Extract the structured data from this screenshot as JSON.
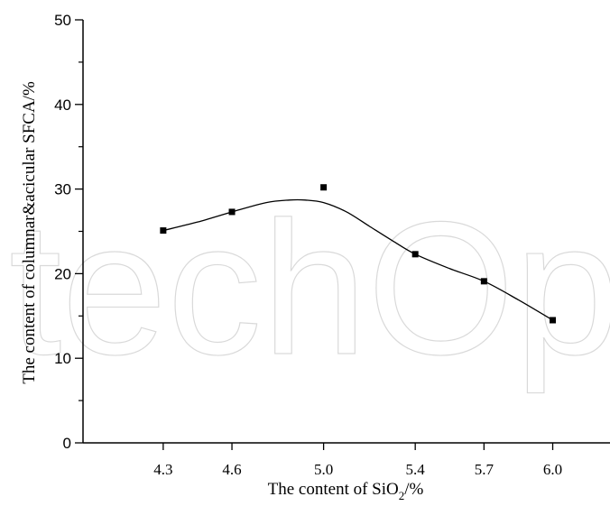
{
  "watermark": "techOp",
  "chart_data": {
    "type": "scatter",
    "title": "",
    "xlabel_prefix": "The content of SiO",
    "xlabel_sub": "2",
    "xlabel_suffix": "/%",
    "ylabel": "The content of columnar&acicular SFCA/%",
    "xlim": [
      3.95,
      6.25
    ],
    "ylim": [
      0,
      50
    ],
    "x_ticks": [
      "4.3",
      "4.6",
      "5.0",
      "5.4",
      "5.7",
      "6.0"
    ],
    "y_ticks": [
      "0",
      "10",
      "20",
      "30",
      "40",
      "50"
    ],
    "grid": false,
    "series": [
      {
        "marker": "square",
        "x": [
          4.3,
          4.6,
          5.0,
          5.4,
          5.7,
          6.0
        ],
        "y": [
          25.1,
          27.3,
          30.2,
          22.3,
          19.1,
          14.5
        ],
        "fit_curve": {
          "x": [
            4.3,
            4.45,
            4.6,
            4.75,
            4.85,
            4.92,
            5.0,
            5.1,
            5.2,
            5.3,
            5.4,
            5.55,
            5.7,
            5.85,
            6.0
          ],
          "y": [
            25.1,
            26.1,
            27.3,
            28.4,
            28.7,
            28.7,
            28.4,
            27.3,
            25.6,
            23.9,
            22.3,
            20.6,
            19.1,
            16.9,
            14.5
          ]
        }
      }
    ]
  }
}
